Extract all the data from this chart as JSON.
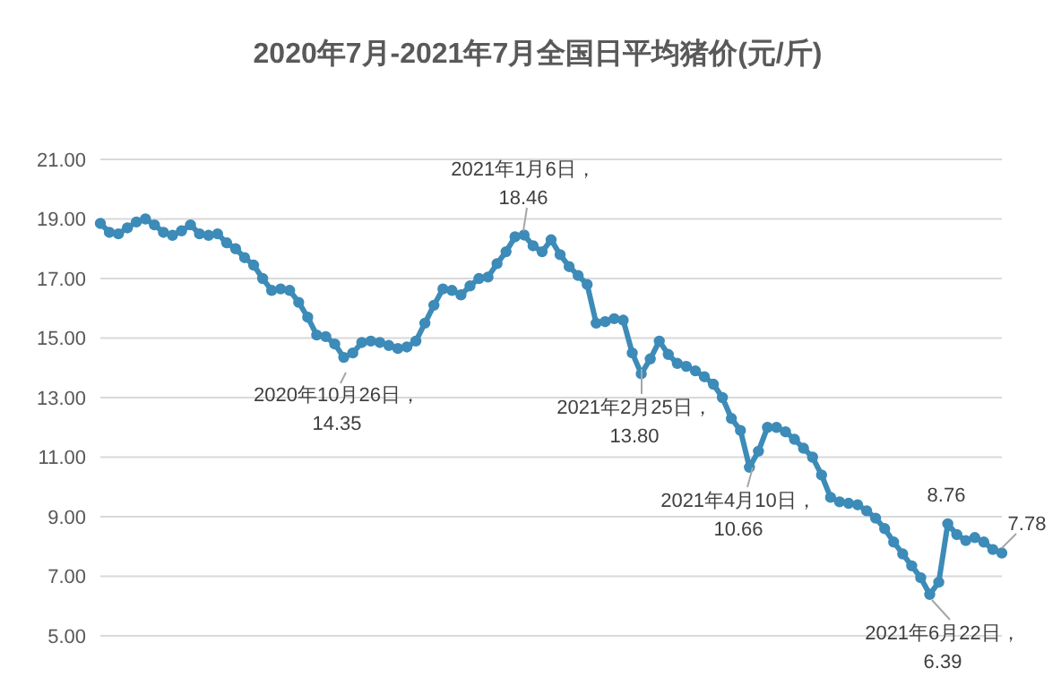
{
  "chart_data": {
    "type": "line",
    "title": "2020年7月-2021年7月全国日平均猪价(元/斤)",
    "categories": [
      null,
      null,
      null,
      null,
      null,
      null,
      null,
      null,
      null,
      null,
      null,
      null,
      null,
      null,
      null,
      null,
      null,
      null,
      null,
      null,
      null,
      null,
      null,
      null,
      null,
      null,
      null,
      null,
      null,
      null,
      null,
      null,
      null,
      null,
      null,
      null,
      null,
      null,
      null,
      null,
      null,
      null,
      null,
      null,
      null,
      null,
      null,
      null,
      null,
      null,
      null,
      null,
      null,
      null,
      null,
      null,
      null,
      null,
      null,
      null,
      null,
      null,
      null,
      null,
      null,
      null,
      null,
      null,
      null,
      null,
      null,
      null,
      null,
      null,
      null,
      null,
      null,
      null,
      null,
      null,
      null,
      null,
      null,
      null,
      null,
      null,
      null,
      null,
      null,
      null,
      null,
      null,
      null,
      null,
      null,
      null,
      null,
      null,
      null,
      null,
      null
    ],
    "series": [
      {
        "color": "#3d8bb8",
        "values": [
          18.85,
          18.55,
          18.5,
          18.7,
          18.9,
          19.0,
          18.8,
          18.55,
          18.45,
          18.6,
          18.8,
          18.5,
          18.45,
          18.5,
          18.2,
          18.0,
          17.7,
          17.45,
          17.0,
          16.6,
          16.65,
          16.6,
          16.2,
          15.7,
          15.1,
          15.05,
          14.8,
          14.35,
          14.5,
          14.85,
          14.9,
          14.85,
          14.75,
          14.65,
          14.7,
          14.9,
          15.5,
          16.1,
          16.65,
          16.6,
          16.45,
          16.75,
          17.0,
          17.05,
          17.5,
          17.9,
          18.4,
          18.46,
          18.1,
          17.9,
          18.3,
          17.8,
          17.4,
          17.1,
          16.8,
          15.5,
          15.55,
          15.65,
          15.6,
          14.5,
          13.8,
          14.3,
          14.9,
          14.45,
          14.15,
          14.05,
          13.9,
          13.7,
          13.45,
          13.0,
          12.3,
          11.9,
          10.66,
          11.2,
          12.0,
          12.0,
          11.85,
          11.6,
          11.3,
          11.0,
          10.4,
          9.65,
          9.5,
          9.45,
          9.4,
          9.2,
          8.95,
          8.6,
          8.15,
          7.75,
          7.35,
          6.95,
          6.39,
          6.8,
          8.76,
          8.4,
          8.2,
          8.3,
          8.15,
          7.9,
          7.78
        ]
      }
    ],
    "ylim": [
      5,
      21
    ],
    "yticks": [
      {
        "value": 5,
        "label": "5.00"
      },
      {
        "value": 7,
        "label": "7.00"
      },
      {
        "value": 9,
        "label": "9.00"
      },
      {
        "value": 11,
        "label": "11.00"
      },
      {
        "value": 13,
        "label": "13.00"
      },
      {
        "value": 15,
        "label": "15.00"
      },
      {
        "value": 17,
        "label": "17.00"
      },
      {
        "value": 19,
        "label": "19.00"
      },
      {
        "value": 21,
        "label": "21.00"
      }
    ],
    "grid": "y",
    "tick_labels": "y",
    "marker": "circle",
    "line_style": "solid",
    "legend": false,
    "annotations": [
      "2020年10月26日，\n14.35",
      "2021年1月6日，\n18.46",
      "2021年2月25日，\n13.80",
      "2021年4月10日，\n10.66",
      "2021年6月22日，\n6.39",
      "8.76",
      "7.78"
    ]
  }
}
